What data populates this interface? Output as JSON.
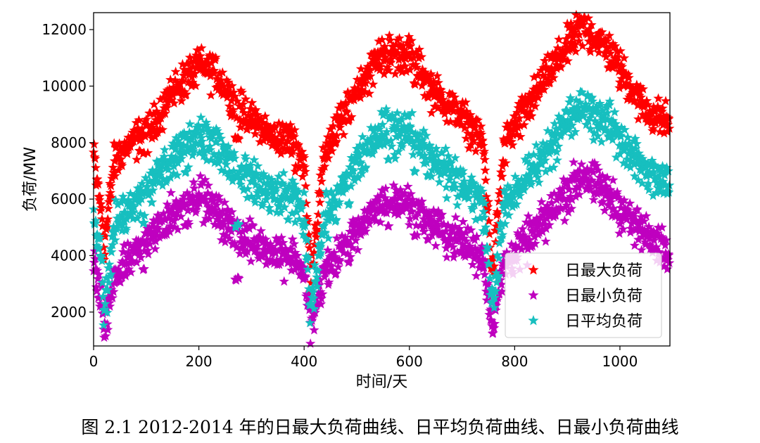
{
  "chart_data": {
    "type": "scatter",
    "xlabel": "时间/天",
    "ylabel": "负荷/MW",
    "xlim": [
      0,
      1095
    ],
    "ylim": [
      800,
      12600
    ],
    "xticks": [
      0,
      200,
      400,
      600,
      800,
      1000
    ],
    "yticks": [
      2000,
      4000,
      6000,
      8000,
      10000,
      12000
    ],
    "grid": false,
    "legend_position": "bottom-right",
    "marker": "star",
    "series": [
      {
        "name": "日最大负荷",
        "color": "#ff0000",
        "anchors": [
          [
            0,
            7600
          ],
          [
            15,
            5600
          ],
          [
            20,
            4400
          ],
          [
            40,
            7500
          ],
          [
            80,
            8200
          ],
          [
            110,
            8600
          ],
          [
            150,
            9900
          ],
          [
            200,
            10800
          ],
          [
            230,
            10600
          ],
          [
            280,
            9200
          ],
          [
            340,
            8300
          ],
          [
            380,
            8100
          ],
          [
            400,
            7400
          ],
          [
            412,
            3300
          ],
          [
            440,
            7800
          ],
          [
            500,
            10000
          ],
          [
            550,
            11300
          ],
          [
            600,
            11200
          ],
          [
            650,
            9800
          ],
          [
            700,
            9000
          ],
          [
            740,
            8100
          ],
          [
            758,
            3300
          ],
          [
            780,
            8000
          ],
          [
            850,
            10100
          ],
          [
            900,
            11500
          ],
          [
            930,
            12200
          ],
          [
            980,
            11300
          ],
          [
            1050,
            9200
          ],
          [
            1095,
            8800
          ]
        ],
        "values": []
      },
      {
        "name": "日最小负荷",
        "color": "#bf00bf",
        "anchors": [
          [
            0,
            3800
          ],
          [
            15,
            2500
          ],
          [
            20,
            1600
          ],
          [
            40,
            3300
          ],
          [
            80,
            4300
          ],
          [
            110,
            4800
          ],
          [
            150,
            5600
          ],
          [
            200,
            6300
          ],
          [
            230,
            5700
          ],
          [
            280,
            4700
          ],
          [
            340,
            4300
          ],
          [
            380,
            4100
          ],
          [
            400,
            3500
          ],
          [
            412,
            1500
          ],
          [
            440,
            3600
          ],
          [
            500,
            5000
          ],
          [
            550,
            6000
          ],
          [
            600,
            6000
          ],
          [
            650,
            5100
          ],
          [
            700,
            4600
          ],
          [
            740,
            4100
          ],
          [
            758,
            1600
          ],
          [
            780,
            3800
          ],
          [
            850,
            5200
          ],
          [
            900,
            6400
          ],
          [
            930,
            7000
          ],
          [
            980,
            6200
          ],
          [
            1050,
            4800
          ],
          [
            1095,
            4400
          ]
        ],
        "values": []
      },
      {
        "name": "日平均负荷",
        "color": "#17bfbf",
        "anchors": [
          [
            0,
            5500
          ],
          [
            15,
            4200
          ],
          [
            20,
            2100
          ],
          [
            40,
            5200
          ],
          [
            80,
            6200
          ],
          [
            110,
            6700
          ],
          [
            150,
            7600
          ],
          [
            200,
            8500
          ],
          [
            230,
            8100
          ],
          [
            280,
            7000
          ],
          [
            340,
            6300
          ],
          [
            380,
            6100
          ],
          [
            400,
            5600
          ],
          [
            412,
            2300
          ],
          [
            440,
            5500
          ],
          [
            500,
            7400
          ],
          [
            550,
            8600
          ],
          [
            600,
            8600
          ],
          [
            650,
            7500
          ],
          [
            700,
            6700
          ],
          [
            740,
            6000
          ],
          [
            758,
            2300
          ],
          [
            780,
            5800
          ],
          [
            850,
            7600
          ],
          [
            900,
            8900
          ],
          [
            930,
            9400
          ],
          [
            980,
            8800
          ],
          [
            1050,
            7100
          ],
          [
            1095,
            6600
          ]
        ],
        "values": []
      }
    ]
  },
  "caption": "图 2.1 2012-2014 年的日最大负荷曲线、日平均负荷曲线、日最小负荷曲线"
}
